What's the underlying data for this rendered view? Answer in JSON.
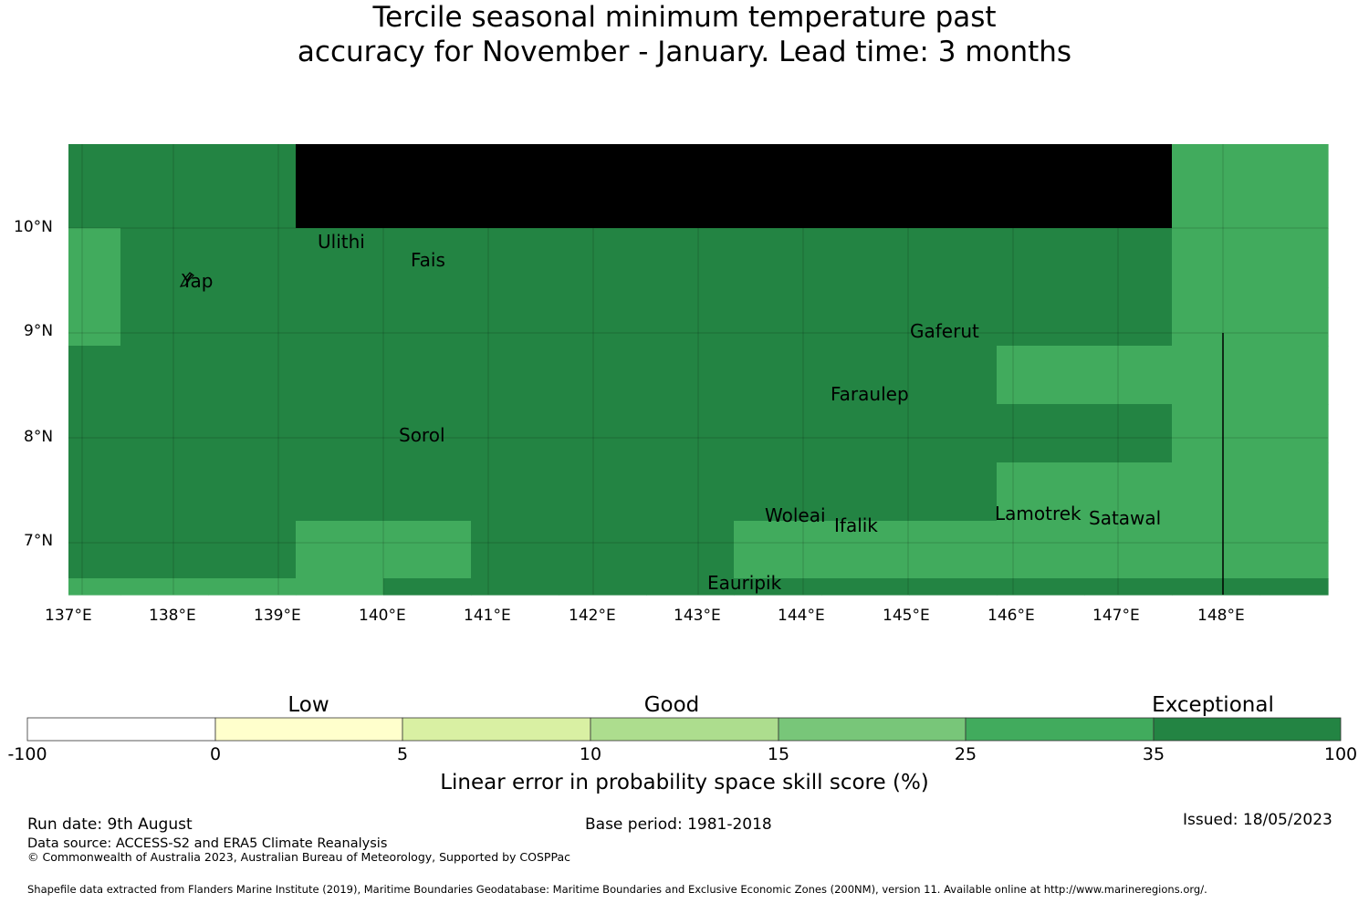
{
  "title": {
    "line1": "Tercile seasonal minimum temperature past",
    "line2": "accuracy for November - January. Lead time: 3 months"
  },
  "map": {
    "lon_ticks": [
      "137°E",
      "138°E",
      "139°E",
      "140°E",
      "141°E",
      "142°E",
      "143°E",
      "144°E",
      "145°E",
      "146°E",
      "147°E",
      "148°E"
    ],
    "lat_ticks": [
      "10°N",
      "9°N",
      "8°N",
      "7°N"
    ],
    "places": [
      "Ulithi",
      "Fais",
      "Yap",
      "Gaferut",
      "Faraulep",
      "Sorol",
      "Woleai",
      "Ifalik",
      "Lamotrek",
      "Satawal",
      "Eauripik"
    ],
    "category_colors": {
      "exceptional_dark": "#238443",
      "good_25_35": "#41ab5d",
      "good_15_25": "#78c679"
    },
    "grid_rows": [
      "EEEGGGGGGGGGGCCCCCCCCCCCCCC",
      "EEEGGGGGGGGGGCCDDDDCCCCCDDCC",
      "CEEEEEEEEEEEECCCCCCCCCDDDDCC",
      "CEEEEEEEEEEEECCDDDDDDDDDDCCC",
      "EEEEEEEEEEECCCCCCDDDDCCCCDDD",
      "EEEEEEEEEEEEECCCCCCCCCCCCDDD",
      "EEEEEEEEEEECCCCCCDDCCCCDDDDC",
      "EEECCEEECCCCCCCCDDDDDDCCCCCC",
      "CCCCEEEEEEEEEEECCCCCCCCCDDCC"
    ]
  },
  "colorbar": {
    "group_labels": [
      "Low",
      "Good",
      "Exceptional"
    ],
    "ticks": [
      "-100",
      "0",
      "5",
      "10",
      "15",
      "25",
      "35",
      "100"
    ],
    "colors": [
      "#ffffff",
      "#ffffcc",
      "#d9f0a3",
      "#addd8e",
      "#78c679",
      "#41ab5d",
      "#238443"
    ],
    "axis_label": "Linear error in probability space skill score (%)"
  },
  "footer": {
    "run_date": "Run date: 9th August",
    "base_period": "Base period: 1981-2018",
    "issued": "Issued: 18/05/2023",
    "data_source": "Data source: ACCESS-S2 and ERA5 Climate Reanalysis",
    "copyright": "© Commonwealth of Australia 2023, Australian Bureau of Meteorology, Supported by COSPPac",
    "shapefile": "Shapefile data extracted from Flanders Marine Institute (2019), Maritime Boundaries Geodatabase: Maritime Boundaries and Exclusive Economic Zones (200NM), version 11. Available online at http://www.marineregions.org/."
  }
}
